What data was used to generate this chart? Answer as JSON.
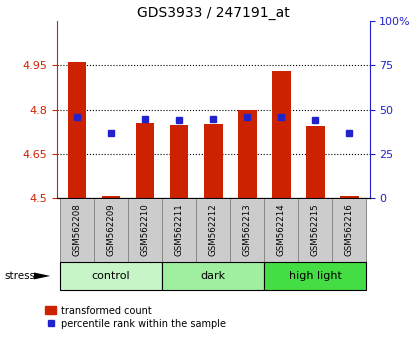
{
  "title": "GDS3933 / 247191_at",
  "samples": [
    "GSM562208",
    "GSM562209",
    "GSM562210",
    "GSM562211",
    "GSM562212",
    "GSM562213",
    "GSM562214",
    "GSM562215",
    "GSM562216"
  ],
  "red_values": [
    4.963,
    4.508,
    4.754,
    4.748,
    4.751,
    4.8,
    4.93,
    4.745,
    4.508
  ],
  "blue_values": [
    4.775,
    4.72,
    4.77,
    4.765,
    4.77,
    4.775,
    4.775,
    4.765,
    4.72
  ],
  "ymin": 4.5,
  "ymax": 5.1,
  "yticks_left": [
    4.5,
    4.65,
    4.8,
    4.95
  ],
  "yticks_left_labels": [
    "4.5",
    "4.65",
    "4.8",
    "4.95"
  ],
  "right_yticks_pct": [
    0,
    25,
    50,
    75,
    100
  ],
  "right_yticks_labels": [
    "0",
    "25",
    "50",
    "75",
    "100%"
  ],
  "groups": [
    {
      "label": "control",
      "start": 0,
      "end": 3,
      "color": "#c8f5c8"
    },
    {
      "label": "dark",
      "start": 3,
      "end": 6,
      "color": "#a0efa0"
    },
    {
      "label": "high light",
      "start": 6,
      "end": 9,
      "color": "#44dd44"
    }
  ],
  "bar_color": "#cc2200",
  "blue_color": "#2222cc",
  "bar_width": 0.55,
  "blue_marker_size": 5,
  "background_label": "#cccccc",
  "label_box_edge": "#888888",
  "title_color": "#000000",
  "left_tick_color": "#cc2200",
  "right_tick_color": "#2222cc",
  "grid_color": "#000000"
}
